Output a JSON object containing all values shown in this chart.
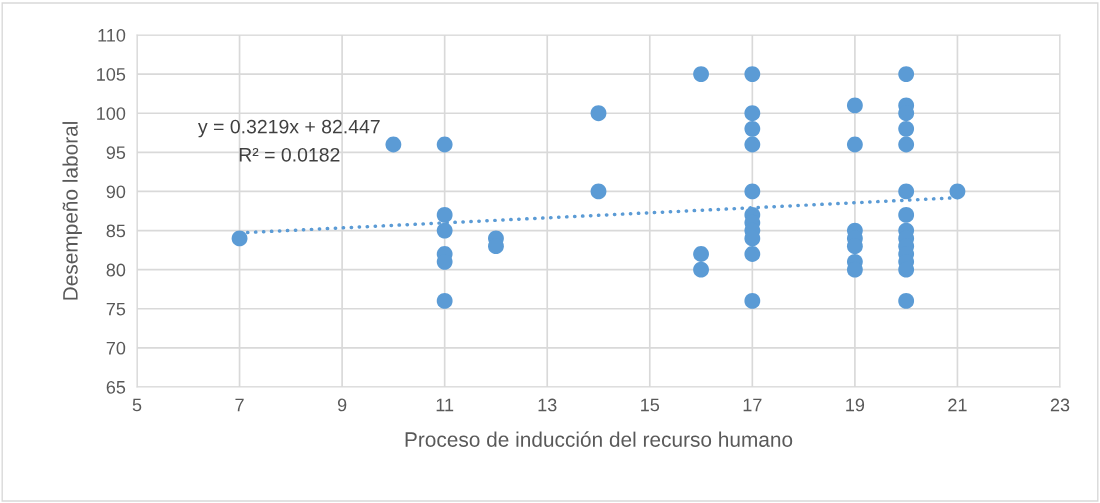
{
  "chart_data": {
    "type": "scatter",
    "xlabel": "Proceso de inducción del recurso humano",
    "ylabel": "Desempeño laboral",
    "xlim": [
      5,
      23
    ],
    "xticks": [
      5,
      7,
      9,
      11,
      13,
      15,
      17,
      19,
      21,
      23
    ],
    "ylim": [
      65,
      110
    ],
    "yticks": [
      65,
      70,
      75,
      80,
      85,
      90,
      95,
      100,
      105,
      110
    ],
    "grid": true,
    "legend": false,
    "marker": "circle",
    "annotations": [
      "y = 0.3219x + 82.447",
      "R² = 0.0182"
    ],
    "series": [
      {
        "color": "#5b9bd5",
        "x": [
          7,
          10,
          11,
          11,
          11,
          11,
          11,
          11,
          12,
          12,
          14,
          14,
          16,
          16,
          16,
          17,
          17,
          17,
          17,
          17,
          17,
          17,
          17,
          17,
          17,
          17,
          19,
          19,
          19,
          19,
          19,
          19,
          19,
          20,
          20,
          20,
          20,
          20,
          20,
          20,
          20,
          20,
          20,
          20,
          20,
          20,
          20,
          21
        ],
        "values": [
          84,
          96,
          96,
          87,
          85,
          82,
          81,
          76,
          84,
          83,
          100,
          90,
          105,
          82,
          80,
          105,
          100,
          98,
          96,
          90,
          87,
          86,
          85,
          84,
          82,
          76,
          101,
          96,
          85,
          84,
          83,
          81,
          80,
          105,
          101,
          100,
          98,
          96,
          90,
          87,
          85,
          84,
          83,
          82,
          81,
          80,
          76,
          90
        ]
      },
      {
        "type": "line",
        "color": "#5b9bd5",
        "line_style": "dotted",
        "marker": "none",
        "x": [
          7,
          21
        ],
        "values": [
          84.7,
          89.2
        ]
      }
    ]
  }
}
